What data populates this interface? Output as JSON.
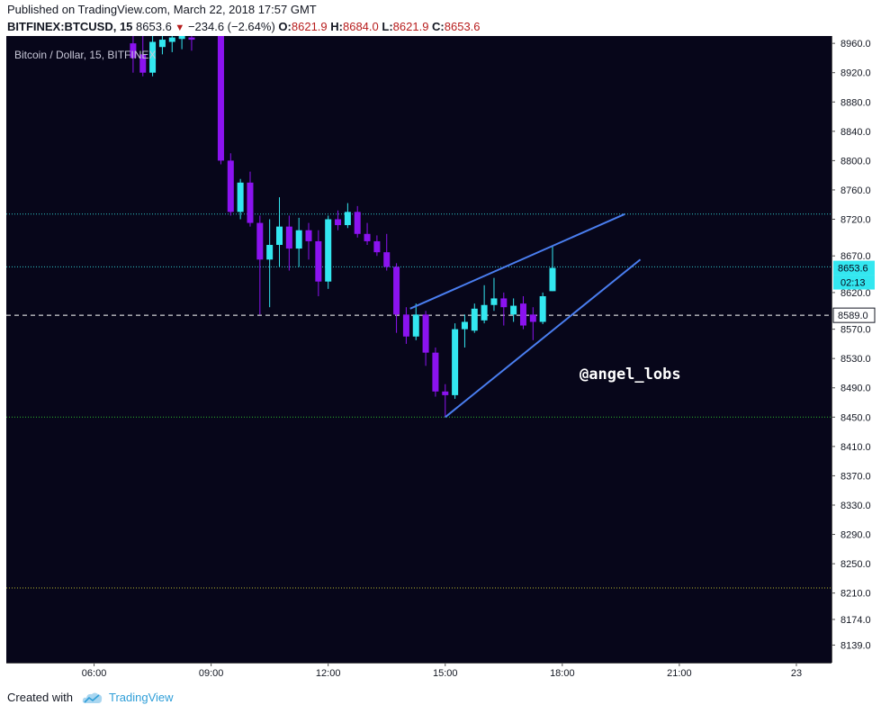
{
  "header": {
    "published": "Published on TradingView.com, March 22, 2018 17:57 GMT",
    "symbol": "BITFINEX:BTCUSD, 15",
    "last": "8653.6",
    "change": "−234.6 (−2.64%)",
    "o_label": "O:",
    "o_value": "8621.9",
    "h_label": "H:",
    "h_value": "8684.0",
    "l_label": "L:",
    "l_value": "8621.9",
    "c_label": "C:",
    "c_value": "8653.6"
  },
  "footer": {
    "created_with": "Created with",
    "brand": "TradingView"
  },
  "colors": {
    "background": "#07061a",
    "up": "#33e7f0",
    "down": "#8b13f0",
    "trendline": "#4a7ef0",
    "last_price_tag": "#33e7f0",
    "level_line_1": "#2fc8c8",
    "level_line_2": "#2db52d",
    "level_line_3": "#b5b52d"
  },
  "chart_data": {
    "type": "candlestick",
    "title": "Bitcoin / Dollar, 15, BITFINEX",
    "watermark": "@angel_lobs",
    "x_ticks": [
      "06:00",
      "09:00",
      "12:00",
      "15:00",
      "18:00",
      "21:00",
      "23"
    ],
    "y_ticks": [
      8960.0,
      8920.0,
      8880.0,
      8840.0,
      8800.0,
      8760.0,
      8720.0,
      8670.0,
      8620.0,
      8570.0,
      8530.0,
      8490.0,
      8450.0,
      8410.0,
      8370.0,
      8330.0,
      8290.0,
      8250.0,
      8210.0,
      8174.0,
      8139.0
    ],
    "y_tick_labels": [
      "8960.0",
      "8920.0",
      "8880.0",
      "8840.0",
      "8800.0",
      "8760.0",
      "8720.0",
      "8670.0",
      "8620.0",
      "8570.0",
      "8530.0",
      "8490.0",
      "8450.0",
      "8410.0",
      "8370.0",
      "8330.0",
      "8290.0",
      "8250.0",
      "8210.0",
      "8174.0",
      "8139.0"
    ],
    "ylim": [
      8115,
      8970
    ],
    "x_range_hours": [
      3.75,
      24.9
    ],
    "last_price": 8653.6,
    "last_price_label": "8653.6",
    "countdown": "02:13",
    "marked_level": 8589.0,
    "marked_level_label": "8589.0",
    "horizontal_levels": [
      8727,
      8655,
      8450,
      8217
    ],
    "candles": [
      {
        "t": 7.0,
        "o": 8960,
        "h": 8972,
        "l": 8920,
        "c": 8940
      },
      {
        "t": 7.25,
        "o": 8945,
        "h": 8972,
        "l": 8915,
        "c": 8920
      },
      {
        "t": 7.5,
        "o": 8920,
        "h": 8972,
        "l": 8915,
        "c": 8962
      },
      {
        "t": 7.75,
        "o": 8955,
        "h": 8972,
        "l": 8945,
        "c": 8965
      },
      {
        "t": 8.0,
        "o": 8962,
        "h": 8972,
        "l": 8948,
        "c": 8968
      },
      {
        "t": 8.25,
        "o": 8966,
        "h": 8972,
        "l": 8952,
        "c": 8970
      },
      {
        "t": 8.5,
        "o": 8968,
        "h": 8972,
        "l": 8950,
        "c": 8965
      },
      {
        "t": 9.25,
        "o": 8970,
        "h": 8972,
        "l": 8795,
        "c": 8800
      },
      {
        "t": 9.5,
        "o": 8800,
        "h": 8810,
        "l": 8725,
        "c": 8730
      },
      {
        "t": 9.75,
        "o": 8730,
        "h": 8775,
        "l": 8720,
        "c": 8770
      },
      {
        "t": 10.0,
        "o": 8770,
        "h": 8785,
        "l": 8710,
        "c": 8715
      },
      {
        "t": 10.25,
        "o": 8715,
        "h": 8725,
        "l": 8590,
        "c": 8665
      },
      {
        "t": 10.5,
        "o": 8665,
        "h": 8720,
        "l": 8600,
        "c": 8685
      },
      {
        "t": 10.75,
        "o": 8685,
        "h": 8750,
        "l": 8655,
        "c": 8710
      },
      {
        "t": 11.0,
        "o": 8710,
        "h": 8725,
        "l": 8650,
        "c": 8680
      },
      {
        "t": 11.25,
        "o": 8680,
        "h": 8722,
        "l": 8655,
        "c": 8705
      },
      {
        "t": 11.5,
        "o": 8705,
        "h": 8715,
        "l": 8665,
        "c": 8690
      },
      {
        "t": 11.75,
        "o": 8690,
        "h": 8705,
        "l": 8615,
        "c": 8635
      },
      {
        "t": 12.0,
        "o": 8635,
        "h": 8725,
        "l": 8625,
        "c": 8720
      },
      {
        "t": 12.25,
        "o": 8720,
        "h": 8732,
        "l": 8705,
        "c": 8712
      },
      {
        "t": 12.5,
        "o": 8712,
        "h": 8742,
        "l": 8708,
        "c": 8730
      },
      {
        "t": 12.75,
        "o": 8730,
        "h": 8738,
        "l": 8695,
        "c": 8700
      },
      {
        "t": 13.0,
        "o": 8700,
        "h": 8715,
        "l": 8685,
        "c": 8690
      },
      {
        "t": 13.25,
        "o": 8690,
        "h": 8698,
        "l": 8670,
        "c": 8675
      },
      {
        "t": 13.5,
        "o": 8675,
        "h": 8700,
        "l": 8650,
        "c": 8655
      },
      {
        "t": 13.75,
        "o": 8655,
        "h": 8660,
        "l": 8565,
        "c": 8590
      },
      {
        "t": 14.0,
        "o": 8590,
        "h": 8600,
        "l": 8550,
        "c": 8560
      },
      {
        "t": 14.25,
        "o": 8560,
        "h": 8605,
        "l": 8555,
        "c": 8590
      },
      {
        "t": 14.5,
        "o": 8590,
        "h": 8595,
        "l": 8520,
        "c": 8538
      },
      {
        "t": 14.75,
        "o": 8538,
        "h": 8545,
        "l": 8478,
        "c": 8485
      },
      {
        "t": 15.0,
        "o": 8485,
        "h": 8495,
        "l": 8450,
        "c": 8480
      },
      {
        "t": 15.25,
        "o": 8480,
        "h": 8578,
        "l": 8475,
        "c": 8570
      },
      {
        "t": 15.5,
        "o": 8570,
        "h": 8590,
        "l": 8545,
        "c": 8580
      },
      {
        "t": 15.75,
        "o": 8568,
        "h": 8605,
        "l": 8565,
        "c": 8598
      },
      {
        "t": 16.0,
        "o": 8582,
        "h": 8630,
        "l": 8578,
        "c": 8603
      },
      {
        "t": 16.25,
        "o": 8603,
        "h": 8640,
        "l": 8595,
        "c": 8612
      },
      {
        "t": 16.5,
        "o": 8612,
        "h": 8620,
        "l": 8575,
        "c": 8600
      },
      {
        "t": 16.75,
        "o": 8590,
        "h": 8612,
        "l": 8580,
        "c": 8602
      },
      {
        "t": 17.0,
        "o": 8605,
        "h": 8615,
        "l": 8570,
        "c": 8575
      },
      {
        "t": 17.25,
        "o": 8590,
        "h": 8600,
        "l": 8555,
        "c": 8580
      },
      {
        "t": 17.5,
        "o": 8580,
        "h": 8620,
        "l": 8577,
        "c": 8615
      },
      {
        "t": 17.75,
        "o": 8621.9,
        "h": 8684,
        "l": 8621.9,
        "c": 8653.6
      }
    ],
    "trendlines": [
      {
        "t1": 14.1,
        "p1": 8598,
        "t2": 19.6,
        "p2": 8727
      },
      {
        "t1": 15.0,
        "p1": 8450,
        "t2": 20.0,
        "p2": 8665
      }
    ]
  }
}
